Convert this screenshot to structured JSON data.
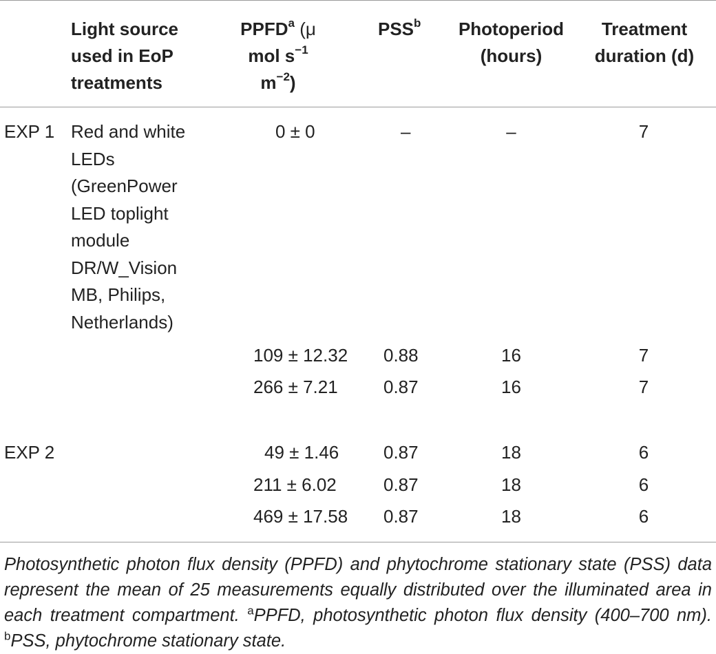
{
  "headers": {
    "source_line1": "Light source",
    "source_line2": "used in EoP",
    "source_line3": "treatments",
    "ppfd_label": "PPFD",
    "ppfd_sup": "a",
    "ppfd_rest1": " (μ",
    "ppfd_line2": "mol s",
    "ppfd_line2_sup": "−1",
    "ppfd_line3": "m",
    "ppfd_line3_sup": "−2",
    "ppfd_line3_end": ")",
    "pss_label": "PSS",
    "pss_sup": "b",
    "photoperiod_line1": "Photoperiod",
    "photoperiod_line2": "(hours)",
    "treatment_line1": "Treatment",
    "treatment_line2": "duration (d)"
  },
  "rows": [
    {
      "exp": "EXP 1",
      "source": "Red and white LEDs (GreenPower LED toplight module DR/W_Vision MB, Philips, Netherlands)",
      "ppfd": "0 ± 0",
      "pss": "",
      "photoperiod": "–",
      "duration": "7"
    },
    {
      "exp": "",
      "source": "",
      "ppfd": "109 ± 12.32",
      "pss": "0.88",
      "photoperiod": "16",
      "duration": "7"
    },
    {
      "exp": "",
      "source": "",
      "ppfd": "266 ± 7.21",
      "pss": "0.87",
      "photoperiod": "16",
      "duration": "7"
    },
    {
      "exp": "EXP 2",
      "source": "",
      "ppfd": "49 ± 1.46",
      "pss": "0.87",
      "photoperiod": "18",
      "duration": "6"
    },
    {
      "exp": "",
      "source": "",
      "ppfd": "211 ± 6.02",
      "pss": "0.87",
      "photoperiod": "18",
      "duration": "6"
    },
    {
      "exp": "",
      "source": "",
      "ppfd": "469 ± 17.58",
      "pss": "0.87",
      "photoperiod": "18",
      "duration": "6"
    }
  ],
  "row1_pss_dash": "–",
  "caption": {
    "main": "Photosynthetic photon flux density (PPFD) and phytochrome stationary state (PSS) data represent the mean of 25 measurements equally distributed over the illuminated area in each treatment compartment. ",
    "note_a_sup": "a",
    "note_a": "PPFD, photosynthetic photon flux density (400–700 nm). ",
    "note_b_sup": "b",
    "note_b": "PSS, phytochrome stationary state."
  }
}
